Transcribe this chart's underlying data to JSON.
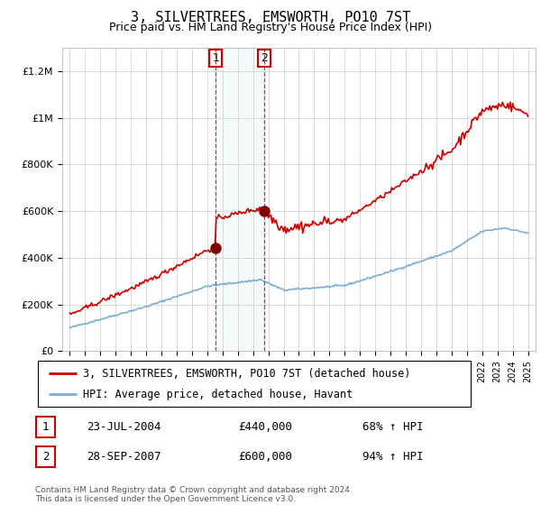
{
  "title": "3, SILVERTREES, EMSWORTH, PO10 7ST",
  "subtitle": "Price paid vs. HM Land Registry's House Price Index (HPI)",
  "title_fontsize": 11,
  "subtitle_fontsize": 9,
  "ylabel_ticks": [
    "£0",
    "£200K",
    "£400K",
    "£600K",
    "£800K",
    "£1M",
    "£1.2M"
  ],
  "ytick_values": [
    0,
    200000,
    400000,
    600000,
    800000,
    1000000,
    1200000
  ],
  "ylim": [
    0,
    1300000
  ],
  "xlim_start": 1994.5,
  "xlim_end": 2025.5,
  "hpi_color": "#7aadd4",
  "price_color": "#cc0000",
  "transaction1_x": 2004.55,
  "transaction1_y": 440000,
  "transaction2_x": 2007.74,
  "transaction2_y": 600000,
  "shade_x1": 2004.55,
  "shade_x2": 2007.74,
  "legend_line1": "3, SILVERTREES, EMSWORTH, PO10 7ST (detached house)",
  "legend_line2": "HPI: Average price, detached house, Havant",
  "table_rows": [
    {
      "num": "1",
      "date": "23-JUL-2004",
      "price": "£440,000",
      "pct": "68% ↑ HPI"
    },
    {
      "num": "2",
      "date": "28-SEP-2007",
      "price": "£600,000",
      "pct": "94% ↑ HPI"
    }
  ],
  "footer": "Contains HM Land Registry data © Crown copyright and database right 2024.\nThis data is licensed under the Open Government Licence v3.0.",
  "background_color": "#ffffff",
  "grid_color": "#cccccc"
}
